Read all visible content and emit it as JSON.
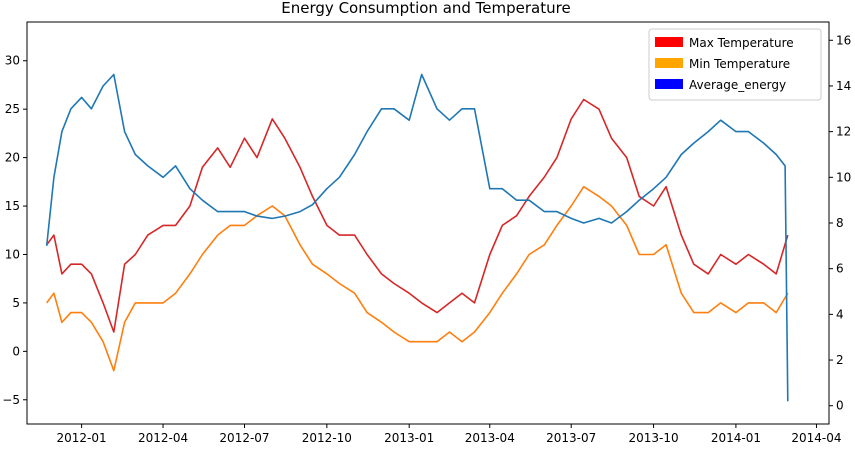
{
  "chart_data": {
    "type": "line",
    "title": "Energy Consumption and Temperature",
    "xlabel": "",
    "ylabel_left": "",
    "ylabel_right": "",
    "x_range": [
      "2011-11-01",
      "2014-04-15"
    ],
    "ylim_left": [
      -7.5,
      34
    ],
    "ylim_right": [
      -0.8,
      16.8
    ],
    "grid": false,
    "legend_position": "top-right",
    "x_ticks": [
      "2012-01",
      "2012-04",
      "2012-07",
      "2012-10",
      "2013-01",
      "2013-04",
      "2013-07",
      "2013-10",
      "2014-01",
      "2014-04"
    ],
    "y_ticks_left": [
      "−5",
      "0",
      "5",
      "10",
      "15",
      "20",
      "25",
      "30"
    ],
    "y_ticks_right": [
      "0",
      "2",
      "4",
      "6",
      "8",
      "10",
      "12",
      "14",
      "16"
    ],
    "legend": [
      {
        "label": "Max Temperature",
        "color": "#ff0000"
      },
      {
        "label": "Min Temperature",
        "color": "#ffa500"
      },
      {
        "label": "Average_energy",
        "color": "#0000ff"
      }
    ],
    "series": [
      {
        "name": "Max Temperature",
        "axis": "left",
        "color": "#d62728",
        "points": [
          [
            "2011-11-23",
            11
          ],
          [
            "2011-12-01",
            12
          ],
          [
            "2011-12-10",
            8
          ],
          [
            "2011-12-20",
            9
          ],
          [
            "2012-01-01",
            9
          ],
          [
            "2012-01-12",
            8
          ],
          [
            "2012-01-25",
            5
          ],
          [
            "2012-02-06",
            2
          ],
          [
            "2012-02-18",
            9
          ],
          [
            "2012-03-01",
            10
          ],
          [
            "2012-03-15",
            12
          ],
          [
            "2012-04-01",
            13
          ],
          [
            "2012-04-15",
            13
          ],
          [
            "2012-05-01",
            15
          ],
          [
            "2012-05-15",
            19
          ],
          [
            "2012-06-01",
            21
          ],
          [
            "2012-06-15",
            19
          ],
          [
            "2012-07-01",
            22
          ],
          [
            "2012-07-15",
            20
          ],
          [
            "2012-08-01",
            24
          ],
          [
            "2012-08-15",
            22
          ],
          [
            "2012-09-01",
            19
          ],
          [
            "2012-09-15",
            16
          ],
          [
            "2012-10-01",
            13
          ],
          [
            "2012-10-15",
            12
          ],
          [
            "2012-11-01",
            12
          ],
          [
            "2012-11-15",
            10
          ],
          [
            "2012-12-01",
            8
          ],
          [
            "2012-12-15",
            7
          ],
          [
            "2013-01-01",
            6
          ],
          [
            "2013-01-15",
            5
          ],
          [
            "2013-02-01",
            4
          ],
          [
            "2013-02-15",
            5
          ],
          [
            "2013-03-01",
            6
          ],
          [
            "2013-03-15",
            5
          ],
          [
            "2013-04-01",
            10
          ],
          [
            "2013-04-15",
            13
          ],
          [
            "2013-05-01",
            14
          ],
          [
            "2013-05-15",
            16
          ],
          [
            "2013-06-01",
            18
          ],
          [
            "2013-06-15",
            20
          ],
          [
            "2013-07-01",
            24
          ],
          [
            "2013-07-15",
            26
          ],
          [
            "2013-08-01",
            25
          ],
          [
            "2013-08-15",
            22
          ],
          [
            "2013-09-01",
            20
          ],
          [
            "2013-09-15",
            16
          ],
          [
            "2013-10-01",
            15
          ],
          [
            "2013-10-15",
            17
          ],
          [
            "2013-11-01",
            12
          ],
          [
            "2013-11-15",
            9
          ],
          [
            "2013-12-01",
            8
          ],
          [
            "2013-12-15",
            10
          ],
          [
            "2014-01-01",
            9
          ],
          [
            "2014-01-15",
            10
          ],
          [
            "2014-02-01",
            9
          ],
          [
            "2014-02-15",
            8
          ],
          [
            "2014-02-28",
            12
          ]
        ]
      },
      {
        "name": "Min Temperature",
        "axis": "left",
        "color": "#ff7f0e",
        "points": [
          [
            "2011-11-23",
            5
          ],
          [
            "2011-12-01",
            6
          ],
          [
            "2011-12-10",
            3
          ],
          [
            "2011-12-20",
            4
          ],
          [
            "2012-01-01",
            4
          ],
          [
            "2012-01-12",
            3
          ],
          [
            "2012-01-25",
            1
          ],
          [
            "2012-02-06",
            -2
          ],
          [
            "2012-02-18",
            3
          ],
          [
            "2012-03-01",
            5
          ],
          [
            "2012-03-15",
            5
          ],
          [
            "2012-04-01",
            5
          ],
          [
            "2012-04-15",
            6
          ],
          [
            "2012-05-01",
            8
          ],
          [
            "2012-05-15",
            10
          ],
          [
            "2012-06-01",
            12
          ],
          [
            "2012-06-15",
            13
          ],
          [
            "2012-07-01",
            13
          ],
          [
            "2012-07-15",
            14
          ],
          [
            "2012-08-01",
            15
          ],
          [
            "2012-08-15",
            14
          ],
          [
            "2012-09-01",
            11
          ],
          [
            "2012-09-15",
            9
          ],
          [
            "2012-10-01",
            8
          ],
          [
            "2012-10-15",
            7
          ],
          [
            "2012-11-01",
            6
          ],
          [
            "2012-11-15",
            4
          ],
          [
            "2012-12-01",
            3
          ],
          [
            "2012-12-15",
            2
          ],
          [
            "2013-01-01",
            1
          ],
          [
            "2013-01-15",
            1
          ],
          [
            "2013-02-01",
            1
          ],
          [
            "2013-02-15",
            2
          ],
          [
            "2013-03-01",
            1
          ],
          [
            "2013-03-15",
            2
          ],
          [
            "2013-04-01",
            4
          ],
          [
            "2013-04-15",
            6
          ],
          [
            "2013-05-01",
            8
          ],
          [
            "2013-05-15",
            10
          ],
          [
            "2013-06-01",
            11
          ],
          [
            "2013-06-15",
            13
          ],
          [
            "2013-07-01",
            15
          ],
          [
            "2013-07-15",
            17
          ],
          [
            "2013-08-01",
            16
          ],
          [
            "2013-08-15",
            15
          ],
          [
            "2013-09-01",
            13
          ],
          [
            "2013-09-15",
            10
          ],
          [
            "2013-10-01",
            10
          ],
          [
            "2013-10-15",
            11
          ],
          [
            "2013-11-01",
            6
          ],
          [
            "2013-11-15",
            4
          ],
          [
            "2013-12-01",
            4
          ],
          [
            "2013-12-15",
            5
          ],
          [
            "2014-01-01",
            4
          ],
          [
            "2014-01-15",
            5
          ],
          [
            "2014-02-01",
            5
          ],
          [
            "2014-02-15",
            4
          ],
          [
            "2014-02-28",
            6
          ]
        ]
      },
      {
        "name": "Average_energy",
        "axis": "right",
        "color": "#1f77b4",
        "points": [
          [
            "2011-11-23",
            7
          ],
          [
            "2011-12-01",
            10
          ],
          [
            "2011-12-10",
            12
          ],
          [
            "2011-12-20",
            13
          ],
          [
            "2012-01-01",
            13.5
          ],
          [
            "2012-01-12",
            13
          ],
          [
            "2012-01-25",
            14
          ],
          [
            "2012-02-06",
            14.5
          ],
          [
            "2012-02-18",
            12
          ],
          [
            "2012-03-01",
            11
          ],
          [
            "2012-03-15",
            10.5
          ],
          [
            "2012-04-01",
            10
          ],
          [
            "2012-04-15",
            10.5
          ],
          [
            "2012-05-01",
            9.5
          ],
          [
            "2012-05-15",
            9
          ],
          [
            "2012-06-01",
            8.5
          ],
          [
            "2012-06-15",
            8.5
          ],
          [
            "2012-07-01",
            8.5
          ],
          [
            "2012-07-15",
            8.3
          ],
          [
            "2012-08-01",
            8.2
          ],
          [
            "2012-08-15",
            8.3
          ],
          [
            "2012-09-01",
            8.5
          ],
          [
            "2012-09-15",
            8.8
          ],
          [
            "2012-10-01",
            9.5
          ],
          [
            "2012-10-15",
            10
          ],
          [
            "2012-11-01",
            11
          ],
          [
            "2012-11-15",
            12
          ],
          [
            "2012-12-01",
            13
          ],
          [
            "2012-12-15",
            13
          ],
          [
            "2013-01-01",
            12.5
          ],
          [
            "2013-01-15",
            14.5
          ],
          [
            "2013-02-01",
            13
          ],
          [
            "2013-02-15",
            12.5
          ],
          [
            "2013-03-01",
            13
          ],
          [
            "2013-03-15",
            13
          ],
          [
            "2013-04-01",
            9.5
          ],
          [
            "2013-04-15",
            9.5
          ],
          [
            "2013-05-01",
            9
          ],
          [
            "2013-05-15",
            9
          ],
          [
            "2013-06-01",
            8.5
          ],
          [
            "2013-06-15",
            8.5
          ],
          [
            "2013-07-01",
            8.2
          ],
          [
            "2013-07-15",
            8
          ],
          [
            "2013-08-01",
            8.2
          ],
          [
            "2013-08-15",
            8
          ],
          [
            "2013-09-01",
            8.5
          ],
          [
            "2013-09-15",
            9
          ],
          [
            "2013-10-01",
            9.5
          ],
          [
            "2013-10-15",
            10
          ],
          [
            "2013-11-01",
            11
          ],
          [
            "2013-11-15",
            11.5
          ],
          [
            "2013-12-01",
            12
          ],
          [
            "2013-12-15",
            12.5
          ],
          [
            "2014-01-01",
            12
          ],
          [
            "2014-01-15",
            12
          ],
          [
            "2014-02-01",
            11.5
          ],
          [
            "2014-02-15",
            11
          ],
          [
            "2014-02-25",
            10.5
          ],
          [
            "2014-02-28",
            0.2
          ]
        ]
      }
    ]
  }
}
